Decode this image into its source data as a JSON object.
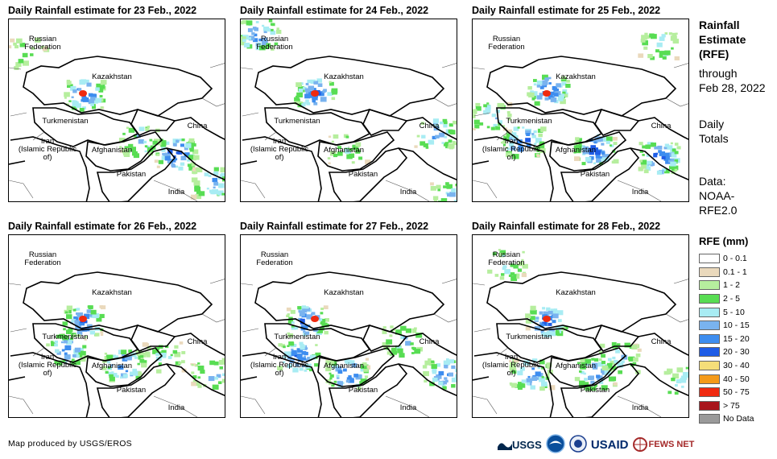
{
  "panels": [
    {
      "title": "Daily Rainfall estimate for 23 Feb., 2022",
      "variant": 0
    },
    {
      "title": "Daily Rainfall estimate for 24 Feb., 2022",
      "variant": 1
    },
    {
      "title": "Daily Rainfall estimate for 25 Feb., 2022",
      "variant": 2
    },
    {
      "title": "Daily Rainfall estimate for 26 Feb., 2022",
      "variant": 3
    },
    {
      "title": "Daily Rainfall estimate for 27 Feb., 2022",
      "variant": 4
    },
    {
      "title": "Daily Rainfall estimate for 28 Feb., 2022",
      "variant": 5
    }
  ],
  "map_labels": {
    "russia": "Russian\nFederation",
    "kazakhstan": "Kazakhstan",
    "turkmenistan": "Turkmenistan",
    "iran": "Iran\n(Islamic Republic of)",
    "afghanistan": "Afghanistan",
    "pakistan": "Pakistan",
    "china": "China",
    "india": "India"
  },
  "sidebar": {
    "title": "Rainfall\nEstimate\n(RFE)",
    "through": "through\nFeb 28, 2022",
    "daily": "Daily\nTotals",
    "data": "Data:\nNOAA-\nRFE2.0"
  },
  "legend": {
    "title": "RFE (mm)",
    "items": [
      {
        "label": "0 - 0.1",
        "color": "#ffffff"
      },
      {
        "label": "0.1 - 1",
        "color": "#ead9bc"
      },
      {
        "label": "1 - 2",
        "color": "#b6ee9e"
      },
      {
        "label": "2 - 5",
        "color": "#58dd53"
      },
      {
        "label": "5 - 10",
        "color": "#a8ecf3"
      },
      {
        "label": "10 - 15",
        "color": "#79b3ef"
      },
      {
        "label": "15 - 20",
        "color": "#3d8def"
      },
      {
        "label": "20 - 30",
        "color": "#1e5ce6"
      },
      {
        "label": "30 - 40",
        "color": "#f5de79"
      },
      {
        "label": "40 - 50",
        "color": "#f49a1a"
      },
      {
        "label": "50 - 75",
        "color": "#f02a10"
      },
      {
        "label": "> 75",
        "color": "#a8141b"
      },
      {
        "label": "No Data",
        "color": "#9a9a9a"
      }
    ]
  },
  "credit": "Map produced by USGS/EROS",
  "logos": [
    "USGS",
    "NOAA",
    "USAID",
    "FEWS NET"
  ]
}
